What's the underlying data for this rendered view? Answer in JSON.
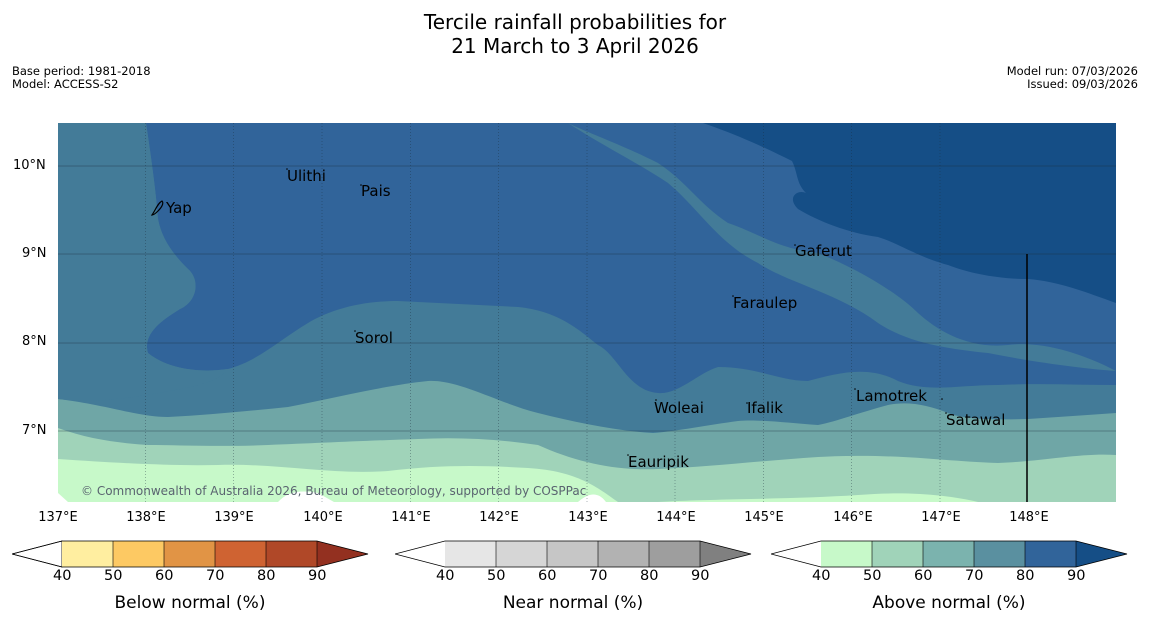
{
  "title_line1": "Tercile rainfall probabilities for",
  "title_line2": "21 March to 3 April 2026",
  "meta_left": {
    "base_period": "Base period: 1981-2018",
    "model": "Model: ACCESS-S2"
  },
  "meta_right": {
    "model_run": "Model run: 07/03/2026",
    "issued": "Issued: 09/03/2026"
  },
  "map": {
    "latitude_labels": [
      "10°N",
      "9°N",
      "8°N",
      "7°N"
    ],
    "longitude_labels": [
      "137°E",
      "138°E",
      "139°E",
      "140°E",
      "141°E",
      "142°E",
      "143°E",
      "144°E",
      "145°E",
      "146°E",
      "147°E",
      "148°E"
    ],
    "places": [
      "Yap",
      "Ulithi",
      "Pais",
      "Gaferut",
      "Faraulep",
      "Sorol",
      "Lamotrek",
      "Woleai",
      "Ifalik",
      "Satawal",
      "Eauripik"
    ],
    "copyright": "© Commonwealth of Australia 2026, Bureau of Meteorology, supported by COSPPac",
    "colors": {
      "above_40": "#c7f9c9",
      "above_50": "#a0d3b9",
      "above_60": "#6fa6a6",
      "above_70": "#437b98",
      "above_80": "#31649a",
      "above_90": "#154e86",
      "land_white": "#ffffff"
    }
  },
  "colorbars": [
    {
      "label": "Below normal (%)",
      "ticks": [
        "40",
        "50",
        "60",
        "70",
        "80",
        "90"
      ],
      "colors": [
        "#ffeea0",
        "#fdc963",
        "#e19445",
        "#cf6332",
        "#b04828",
        "#933020"
      ]
    },
    {
      "label": "Near normal (%)",
      "ticks": [
        "40",
        "50",
        "60",
        "70",
        "80",
        "90"
      ],
      "colors": [
        "#e6e6e6",
        "#d6d6d6",
        "#c6c6c6",
        "#b2b2b2",
        "#9e9e9e",
        "#808080"
      ]
    },
    {
      "label": "Above normal (%)",
      "ticks": [
        "40",
        "50",
        "60",
        "70",
        "80",
        "90"
      ],
      "colors": [
        "#c7f9c9",
        "#a0d3b9",
        "#7bb3ae",
        "#5a90a0",
        "#31649a",
        "#154e86"
      ]
    }
  ]
}
